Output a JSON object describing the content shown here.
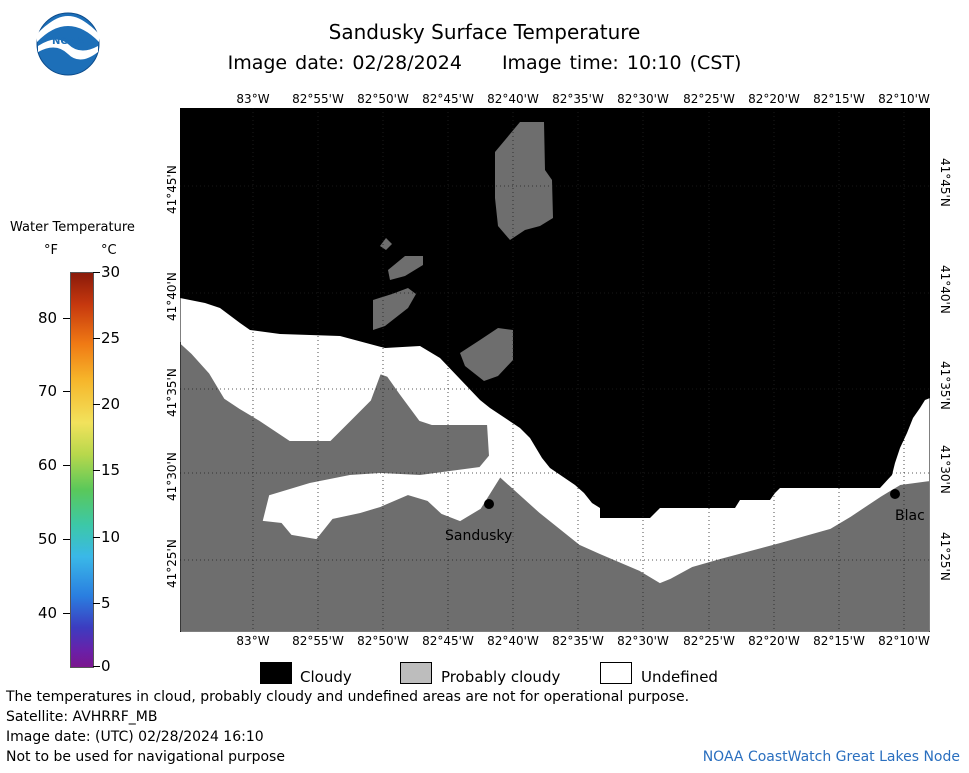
{
  "title": "Sandusky Surface Temperature",
  "image_date": "Image date: 02/28/2024",
  "image_time": "Image time: 10:10 (CST)",
  "logo_text": "NOAA",
  "colorbar": {
    "title": "Water Temperature",
    "unit_f": "°F",
    "unit_c": "°C",
    "f_ticks": [
      "80",
      "70",
      "60",
      "50",
      "40"
    ],
    "c_ticks": [
      "30",
      "25",
      "20",
      "15",
      "10",
      "5",
      "0"
    ]
  },
  "map": {
    "longitudes": [
      "83°W",
      "82°55'W",
      "82°50'W",
      "82°45'W",
      "82°40'W",
      "82°35'W",
      "82°30'W",
      "82°25'W",
      "82°20'W",
      "82°15'W",
      "82°10'W"
    ],
    "latitudes": [
      "41°45'N",
      "41°40'N",
      "41°35'N",
      "41°30'N",
      "41°25'N"
    ],
    "cities": [
      "Sandusky",
      "Blac"
    ]
  },
  "legend": {
    "cloudy": "Cloudy",
    "probably_cloudy": "Probably cloudy",
    "undefined": "Undefined"
  },
  "footer": {
    "disclaimer": "The temperatures in cloud, probably cloudy and undefined areas are not for operational purpose.",
    "satellite": "Satellite: AVHRRF_MB",
    "utc_date": "Image date: (UTC) 02/28/2024  16:10",
    "navigation": "Not to be used for navigational purpose",
    "node": "NOAA CoastWatch Great Lakes Node"
  },
  "colors": {
    "cloudy": "#000000",
    "probably_cloudy": "#6e6e6e",
    "undefined": "#ffffff",
    "node_link": "#2a6fbf"
  }
}
